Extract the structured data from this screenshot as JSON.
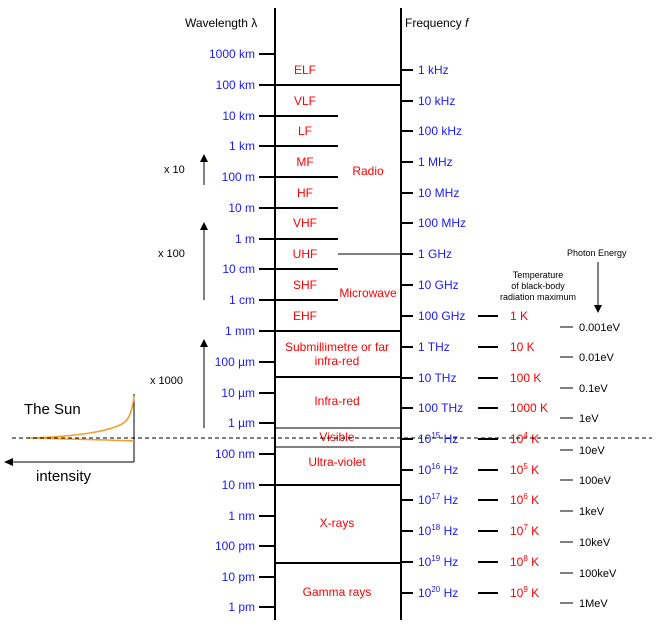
{
  "headers": {
    "wavelength": "Wavelength λ",
    "frequency_prefix": "Frequency ",
    "frequency_symbol": "f",
    "photon_energy": "Photon Energy",
    "temperature": [
      "Temperature",
      "of black-body",
      "radiation maximum"
    ]
  },
  "wavelength_ticks": [
    "1000 km",
    "100 km",
    "10 km",
    "1 km",
    "100 m",
    "10 m",
    "1 m",
    "10 cm",
    "1 cm",
    "1 mm",
    "100 µm",
    "10 µm",
    "1 µm",
    "100 nm",
    "10 nm",
    "1 nm",
    "100 pm",
    "10 pm",
    "1 pm"
  ],
  "frequency_ticks": [
    {
      "base": "1 kHz",
      "exp": ""
    },
    {
      "base": "10 kHz",
      "exp": ""
    },
    {
      "base": "100 kHz",
      "exp": ""
    },
    {
      "base": "1 MHz",
      "exp": ""
    },
    {
      "base": "10 MHz",
      "exp": ""
    },
    {
      "base": "100 MHz",
      "exp": ""
    },
    {
      "base": "1 GHz",
      "exp": ""
    },
    {
      "base": "10 GHz",
      "exp": ""
    },
    {
      "base": "100 GHz",
      "exp": ""
    },
    {
      "base": "1 THz",
      "exp": ""
    },
    {
      "base": "10 THz",
      "exp": ""
    },
    {
      "base": "100 THz",
      "exp": ""
    },
    {
      "base": "10",
      "exp": "15",
      "unit": " Hz"
    },
    {
      "base": "10",
      "exp": "16",
      "unit": " Hz"
    },
    {
      "base": "10",
      "exp": "17",
      "unit": " Hz"
    },
    {
      "base": "10",
      "exp": "18",
      "unit": " Hz"
    },
    {
      "base": "10",
      "exp": "19",
      "unit": " Hz"
    },
    {
      "base": "10",
      "exp": "20",
      "unit": " Hz"
    }
  ],
  "band_labels": [
    "ELF",
    "VLF",
    "LF",
    "MF",
    "HF",
    "VHF",
    "UHF",
    "SHF",
    "EHF"
  ],
  "group_labels": {
    "radio": "Radio",
    "microwave": "Microwave",
    "far_ir": [
      "Submillimetre or far",
      "infra-red"
    ],
    "infrared": "Infra-red",
    "visible": "Visible",
    "uv": "Ultra-violet",
    "xrays": "X-rays",
    "gamma": "Gamma rays"
  },
  "temperatures": [
    {
      "base": "1 K",
      "exp": ""
    },
    {
      "base": "10 K",
      "exp": ""
    },
    {
      "base": "100 K",
      "exp": ""
    },
    {
      "base": "1000 K",
      "exp": ""
    },
    {
      "base": "10",
      "exp": "4",
      "unit": " K"
    },
    {
      "base": "10",
      "exp": "5",
      "unit": " K"
    },
    {
      "base": "10",
      "exp": "6",
      "unit": " K"
    },
    {
      "base": "10",
      "exp": "7",
      "unit": " K"
    },
    {
      "base": "10",
      "exp": "8",
      "unit": " K"
    },
    {
      "base": "10",
      "exp": "9",
      "unit": " K"
    }
  ],
  "photon_energies": [
    "0.001eV",
    "0.01eV",
    "0.1eV",
    "1eV",
    "10eV",
    "100eV",
    "1keV",
    "10keV",
    "100keV",
    "1MeV"
  ],
  "scale_factors": [
    "x 10",
    "x 100",
    "x 1000"
  ],
  "sun": {
    "label": "The Sun",
    "axis_label": "intensity"
  },
  "colors": {
    "blue": "#1a1aff",
    "red": "#ff0000",
    "sun_curve": "#f0a030",
    "line": "#000000"
  }
}
